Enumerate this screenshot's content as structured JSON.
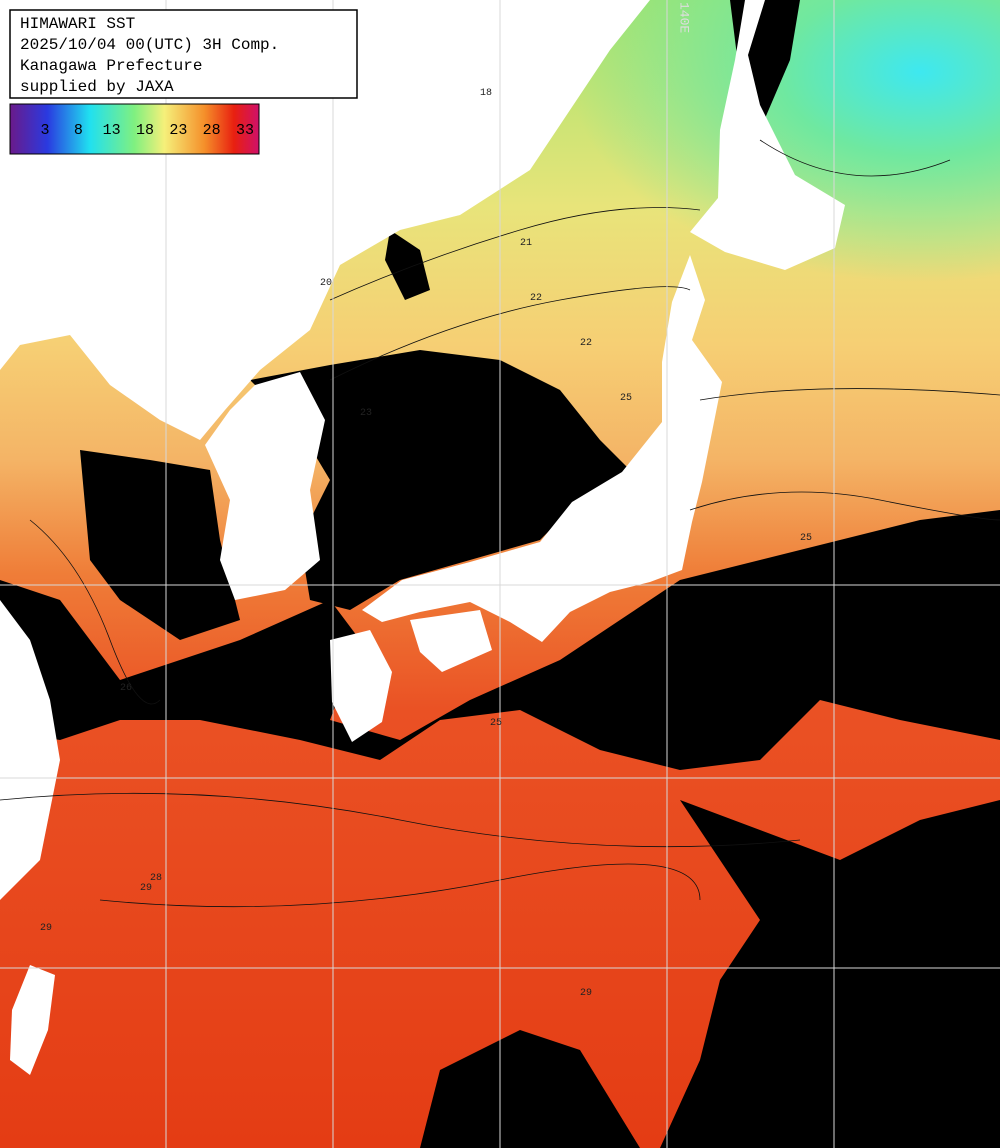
{
  "header": {
    "lines": [
      "HIMAWARI SST",
      "2025/10/04 00(UTC) 3H Comp.",
      "Kanagawa Prefecture",
      "supplied by JAXA"
    ]
  },
  "colorbar": {
    "ticks": [
      3,
      8,
      13,
      18,
      23,
      28,
      33
    ]
  },
  "grid_label": "140E",
  "contour_labels": [
    "18",
    "20",
    "21",
    "22",
    "22",
    "23",
    "25",
    "25",
    "25",
    "26",
    "28",
    "29",
    "29",
    "29"
  ]
}
